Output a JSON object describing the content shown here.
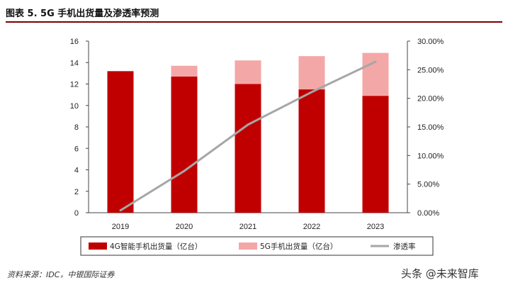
{
  "header": {
    "title": "图表 5. 5G 手机出货量及渗透率预测"
  },
  "chart_data": {
    "type": "bar",
    "stacked": true,
    "categories": [
      "2019",
      "2020",
      "2021",
      "2022",
      "2023"
    ],
    "series": [
      {
        "name": "4G智能手机出货量（亿台）",
        "kind": "bar",
        "axis": "left",
        "color": "#c00000",
        "values": [
          13.2,
          12.7,
          12.0,
          11.5,
          10.9
        ]
      },
      {
        "name": "5G手机出货量（亿台）",
        "kind": "bar",
        "axis": "left",
        "color": "#f4a7a7",
        "values": [
          0.0,
          1.0,
          2.2,
          3.1,
          4.0
        ]
      },
      {
        "name": "渗透率",
        "kind": "line",
        "axis": "right",
        "color": "#a6a6a6",
        "values": [
          0.004,
          0.073,
          0.154,
          0.211,
          0.264
        ]
      }
    ],
    "ylim_left": [
      0,
      16
    ],
    "yticks_left": [
      "0",
      "2",
      "4",
      "6",
      "8",
      "10",
      "12",
      "14",
      "16"
    ],
    "ylim_right": [
      0,
      0.3
    ],
    "yticks_right": [
      "0.00%",
      "5.00%",
      "10.00%",
      "15.00%",
      "20.00%",
      "25.00%",
      "30.00%"
    ],
    "grid": false,
    "legend_position": "bottom"
  },
  "footer": {
    "source": "资料来源：IDC，中银国际证券",
    "watermark": "头条 @未来智库"
  }
}
